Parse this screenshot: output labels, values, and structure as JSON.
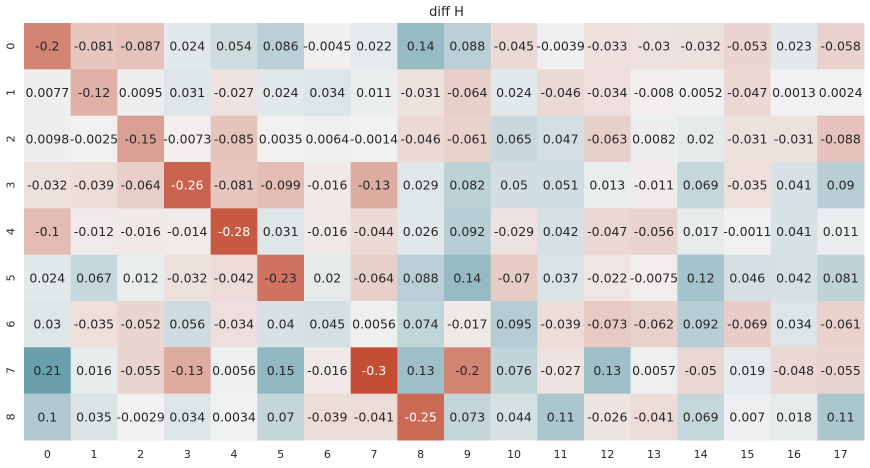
{
  "chart_data": {
    "type": "heatmap",
    "title": "diff H",
    "xlabel": "",
    "ylabel": "",
    "x_tick_labels": [
      "0",
      "1",
      "2",
      "3",
      "4",
      "5",
      "6",
      "7",
      "8",
      "9",
      "10",
      "11",
      "12",
      "13",
      "14",
      "15",
      "16",
      "17"
    ],
    "y_tick_labels": [
      "0",
      "1",
      "2",
      "3",
      "4",
      "5",
      "6",
      "7",
      "8"
    ],
    "colormap": "diverging red-to-blue, centered at 0",
    "negative_color": "#c44e35",
    "center_color": "#f2f2f2",
    "positive_color": "#6a9fad",
    "color_range": [
      -0.3,
      0.21
    ],
    "values": [
      [
        -0.2,
        -0.081,
        -0.087,
        0.024,
        0.054,
        0.086,
        -0.0045,
        0.022,
        0.14,
        0.088,
        -0.045,
        -0.0039,
        -0.033,
        -0.03,
        -0.032,
        -0.053,
        0.023,
        -0.058
      ],
      [
        0.0077,
        -0.12,
        0.0095,
        0.031,
        -0.027,
        0.024,
        0.034,
        0.011,
        -0.031,
        -0.064,
        0.024,
        -0.046,
        -0.034,
        -0.008,
        0.0052,
        -0.047,
        0.0013,
        0.0024
      ],
      [
        0.0098,
        -0.0025,
        -0.15,
        -0.0073,
        -0.085,
        0.0035,
        0.0064,
        -0.0014,
        -0.046,
        -0.061,
        0.065,
        0.047,
        -0.063,
        0.0082,
        0.02,
        -0.031,
        -0.031,
        -0.088
      ],
      [
        -0.032,
        -0.039,
        -0.064,
        -0.26,
        -0.081,
        -0.099,
        -0.016,
        -0.13,
        0.029,
        0.082,
        0.05,
        0.051,
        0.013,
        -0.011,
        0.069,
        -0.035,
        0.041,
        0.09
      ],
      [
        -0.1,
        -0.012,
        -0.016,
        -0.014,
        -0.28,
        0.031,
        -0.016,
        -0.044,
        0.026,
        0.092,
        -0.029,
        0.042,
        -0.047,
        -0.056,
        0.017,
        -0.0011,
        0.041,
        0.011
      ],
      [
        0.024,
        0.067,
        0.012,
        -0.032,
        -0.042,
        -0.23,
        0.02,
        -0.064,
        0.088,
        0.14,
        -0.07,
        0.037,
        -0.022,
        -0.0075,
        0.12,
        0.046,
        0.042,
        0.081
      ],
      [
        0.03,
        -0.035,
        -0.052,
        0.056,
        -0.034,
        0.04,
        0.045,
        0.0056,
        0.074,
        -0.017,
        0.095,
        -0.039,
        -0.073,
        -0.062,
        0.092,
        -0.069,
        0.034,
        -0.061
      ],
      [
        0.21,
        0.016,
        -0.055,
        -0.13,
        0.0056,
        0.15,
        -0.016,
        -0.3,
        0.13,
        -0.2,
        0.076,
        -0.027,
        0.13,
        0.0057,
        -0.05,
        0.019,
        -0.048,
        -0.055
      ],
      [
        0.1,
        0.035,
        -0.0029,
        0.034,
        0.0034,
        0.07,
        -0.039,
        -0.041,
        -0.25,
        0.073,
        0.044,
        0.11,
        -0.026,
        -0.041,
        0.069,
        0.007,
        0.018,
        0.11
      ]
    ],
    "cell_labels": [
      [
        "-0.2",
        "-0.081",
        "-0.087",
        "0.024",
        "0.054",
        "0.086",
        "-0.0045",
        "0.022",
        "0.14",
        "0.088",
        "-0.045",
        "-0.0039",
        "-0.033",
        "-0.03",
        "-0.032",
        "-0.053",
        "0.023",
        "-0.058"
      ],
      [
        "0.0077",
        "-0.12",
        "0.0095",
        "0.031",
        "-0.027",
        "0.024",
        "0.034",
        "0.011",
        "-0.031",
        "-0.064",
        "0.024",
        "-0.046",
        "-0.034",
        "-0.008",
        "0.0052",
        "-0.047",
        "0.0013",
        "0.0024"
      ],
      [
        "0.0098",
        "-0.0025",
        "-0.15",
        "-0.0073",
        "-0.085",
        "0.0035",
        "0.0064",
        "-0.0014",
        "-0.046",
        "-0.061",
        "0.065",
        "0.047",
        "-0.063",
        "0.0082",
        "0.02",
        "-0.031",
        "-0.031",
        "-0.088"
      ],
      [
        "-0.032",
        "-0.039",
        "-0.064",
        "-0.26",
        "-0.081",
        "-0.099",
        "-0.016",
        "-0.13",
        "0.029",
        "0.082",
        "0.05",
        "0.051",
        "0.013",
        "-0.011",
        "0.069",
        "-0.035",
        "0.041",
        "0.09"
      ],
      [
        "-0.1",
        "-0.012",
        "-0.016",
        "-0.014",
        "-0.28",
        "0.031",
        "-0.016",
        "-0.044",
        "0.026",
        "0.092",
        "-0.029",
        "0.042",
        "-0.047",
        "-0.056",
        "0.017",
        "-0.0011",
        "0.041",
        "0.011"
      ],
      [
        "0.024",
        "0.067",
        "0.012",
        "-0.032",
        "-0.042",
        "-0.23",
        "0.02",
        "-0.064",
        "0.088",
        "0.14",
        "-0.07",
        "0.037",
        "-0.022",
        "-0.0075",
        "0.12",
        "0.046",
        "0.042",
        "0.081"
      ],
      [
        "0.03",
        "-0.035",
        "-0.052",
        "0.056",
        "-0.034",
        "0.04",
        "0.045",
        "0.0056",
        "0.074",
        "-0.017",
        "0.095",
        "-0.039",
        "-0.073",
        "-0.062",
        "0.092",
        "-0.069",
        "0.034",
        "-0.061"
      ],
      [
        "0.21",
        "0.016",
        "-0.055",
        "-0.13",
        "0.0056",
        "0.15",
        "-0.016",
        "-0.3",
        "0.13",
        "-0.2",
        "0.076",
        "-0.027",
        "0.13",
        "0.0057",
        "-0.05",
        "0.019",
        "-0.048",
        "-0.055"
      ],
      [
        "0.1",
        "0.035",
        "-0.0029",
        "0.034",
        "0.0034",
        "0.07",
        "-0.039",
        "-0.041",
        "-0.25",
        "0.073",
        "0.044",
        "0.11",
        "-0.026",
        "-0.041",
        "0.069",
        "0.007",
        "0.018",
        "0.11"
      ]
    ],
    "legend": "none",
    "grid": false
  }
}
